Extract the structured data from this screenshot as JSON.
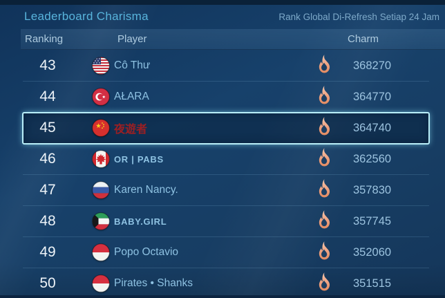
{
  "header": {
    "title": "Leaderboard Charisma",
    "refresh_note": "Rank Global Di-Refresh Setiap 24 Jam"
  },
  "columns": {
    "ranking": "Ranking",
    "player": "Player",
    "charm": "Charm"
  },
  "colors": {
    "title_accent": "#58b4dc",
    "highlight_border": "#b9eef8",
    "flame_outer": "#eda181",
    "red_name": "#9b1f23",
    "background_blue": "#17416b"
  },
  "rows": [
    {
      "rank": "43",
      "flag": "us",
      "player": "Cô Thư",
      "charm": "368270",
      "highlighted": false,
      "name_style": "normal"
    },
    {
      "rank": "44",
      "flag": "tr",
      "player": "AŁARA",
      "charm": "364770",
      "highlighted": false,
      "name_style": "normal"
    },
    {
      "rank": "45",
      "flag": "cn",
      "player": "夜遊者",
      "charm": "364740",
      "highlighted": true,
      "name_style": "red"
    },
    {
      "rank": "46",
      "flag": "ca",
      "player": "OR | PABS",
      "charm": "362560",
      "highlighted": false,
      "name_style": "caps"
    },
    {
      "rank": "47",
      "flag": "ru",
      "player": "Karen Nancy.",
      "charm": "357830",
      "highlighted": false,
      "name_style": "normal"
    },
    {
      "rank": "48",
      "flag": "kw",
      "player": "BABY.GIRL",
      "charm": "357745",
      "highlighted": false,
      "name_style": "caps"
    },
    {
      "rank": "49",
      "flag": "id",
      "player": "Popo Octavio",
      "charm": "352060",
      "highlighted": false,
      "name_style": "normal"
    },
    {
      "rank": "50",
      "flag": "id",
      "player": "Pirates • Shanks",
      "charm": "351515",
      "highlighted": false,
      "name_style": "normal"
    }
  ]
}
